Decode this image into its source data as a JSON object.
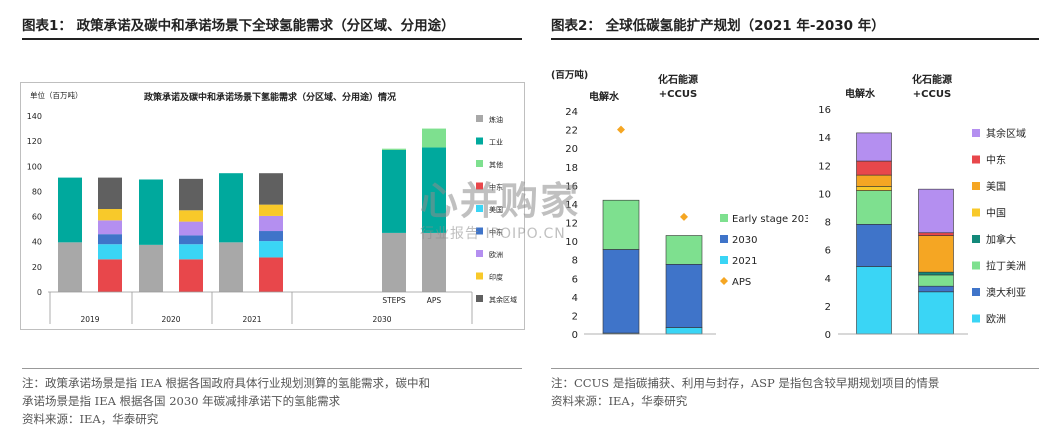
{
  "left_header": "图表1： 政策承诺及碳中和承诺场景下全球氢能需求（分区域、分用途）",
  "right_header": "图表2： 全球低碳氢能扩产规划（2021 年-2030 年）",
  "left_notes": [
    "注：政策承诺场景是指 IEA 根据各国政府具体行业规划测算的氢能需求，碳中和",
    "承诺场景是指 IEA 根据各国 2030 年碳减排承诺下的氢能需求",
    "资料来源：IEA，华泰研究"
  ],
  "right_notes": [
    "注：CCUS 是指碳捕获、利用与封存，ASP 是指包含较早期规划项目的情景",
    "资料来源：IEA，华泰研究"
  ],
  "watermark": {
    "main": "心并购家",
    "sub": "行业报告 IPOIPO.CN"
  },
  "colors": {
    "gray": "#a8a8a8",
    "teal": "#00a99d",
    "lightgreen": "#7ee08f",
    "red": "#e8474b",
    "blue": "#3f74c9",
    "lightblue": "#3ad5f5",
    "purple": "#b48ff0",
    "yellow": "#f8c92a",
    "darkgray": "#606060",
    "orange": "#f5a623",
    "darkteal": "#13897a"
  },
  "chart_data": [
    {
      "type": "bar",
      "title": "政策承诺及碳中和承诺场景下氢能需求（分区域、分用途）情况",
      "ylabel": "单位（百万吨）",
      "ylim": [
        0,
        140
      ],
      "yticks": [
        0,
        20,
        40,
        60,
        80,
        100,
        120,
        140
      ],
      "categories": [
        "2019 by-use",
        "2019 by-region",
        "2020 by-use",
        "2020 by-region",
        "2021 by-use",
        "2021 by-region",
        "STEPS",
        "APS"
      ],
      "group_labels": [
        "2019",
        "2020",
        "2021",
        "2030"
      ],
      "sub_labels": [
        "STEPS",
        "APS"
      ],
      "legend": [
        {
          "name": "炼油",
          "color": "gray"
        },
        {
          "name": "工业",
          "color": "teal"
        },
        {
          "name": "其他",
          "color": "lightgreen"
        },
        {
          "name": "中东",
          "color": "red"
        },
        {
          "name": "美国",
          "color": "lightblue"
        },
        {
          "name": "中东",
          "color": "blue"
        },
        {
          "name": "欧洲",
          "color": "purple"
        },
        {
          "name": "印度",
          "color": "yellow"
        },
        {
          "name": "其余区域",
          "color": "darkgray"
        }
      ],
      "stacks": [
        [
          {
            "v": 39.5,
            "c": "gray"
          },
          {
            "v": 51.5,
            "c": "teal"
          }
        ],
        [
          {
            "v": 26,
            "c": "red"
          },
          {
            "v": 12,
            "c": "lightblue"
          },
          {
            "v": 8,
            "c": "blue"
          },
          {
            "v": 11,
            "c": "purple"
          },
          {
            "v": 9,
            "c": "yellow"
          },
          {
            "v": 25,
            "c": "darkgray"
          }
        ],
        [
          {
            "v": 37.5,
            "c": "gray"
          },
          {
            "v": 52,
            "c": "teal"
          }
        ],
        [
          {
            "v": 26,
            "c": "red"
          },
          {
            "v": 12,
            "c": "lightblue"
          },
          {
            "v": 7,
            "c": "blue"
          },
          {
            "v": 11,
            "c": "purple"
          },
          {
            "v": 9,
            "c": "yellow"
          },
          {
            "v": 25,
            "c": "darkgray"
          }
        ],
        [
          {
            "v": 39.5,
            "c": "gray"
          },
          {
            "v": 55,
            "c": "teal"
          }
        ],
        [
          {
            "v": 27.5,
            "c": "red"
          },
          {
            "v": 13,
            "c": "lightblue"
          },
          {
            "v": 8,
            "c": "blue"
          },
          {
            "v": 12,
            "c": "purple"
          },
          {
            "v": 9,
            "c": "yellow"
          },
          {
            "v": 25,
            "c": "darkgray"
          }
        ],
        [
          {
            "v": 47,
            "c": "gray"
          },
          {
            "v": 66,
            "c": "teal"
          },
          {
            "v": 1,
            "c": "lightgreen"
          }
        ],
        [
          {
            "v": 47,
            "c": "gray"
          },
          {
            "v": 68,
            "c": "teal"
          },
          {
            "v": 15,
            "c": "lightgreen"
          }
        ]
      ]
    },
    {
      "type": "bar",
      "ylabel": "(百万吨)",
      "ylim": [
        0,
        24
      ],
      "yticks": [
        0,
        2,
        4,
        6,
        8,
        10,
        12,
        14,
        16,
        18,
        20,
        22,
        24
      ],
      "categories": [
        "电解水",
        "化石能源+CCUS"
      ],
      "legend": [
        {
          "name": "Early stage 2030",
          "color": "lightgreen"
        },
        {
          "name": "2030",
          "color": "blue"
        },
        {
          "name": "2021",
          "color": "lightblue"
        },
        {
          "name": "APS",
          "color": "orange"
        }
      ],
      "stacks": [
        [
          {
            "v": 0.1,
            "c": "lightblue"
          },
          {
            "v": 9.0,
            "c": "blue"
          },
          {
            "v": 5.3,
            "c": "lightgreen"
          }
        ],
        [
          {
            "v": 0.7,
            "c": "lightblue"
          },
          {
            "v": 6.8,
            "c": "blue"
          },
          {
            "v": 3.1,
            "c": "lightgreen"
          }
        ]
      ],
      "aps": [
        22,
        12.6
      ]
    },
    {
      "type": "bar",
      "ylim": [
        0,
        16
      ],
      "yticks": [
        0,
        2,
        4,
        6,
        8,
        10,
        12,
        14,
        16
      ],
      "categories": [
        "电解水",
        "化石能源+CCUS"
      ],
      "legend": [
        {
          "name": "其余区域",
          "color": "purple"
        },
        {
          "name": "中东",
          "color": "red"
        },
        {
          "name": "美国",
          "color": "orange"
        },
        {
          "name": "中国",
          "color": "yellow"
        },
        {
          "name": "加拿大",
          "color": "darkteal"
        },
        {
          "name": "拉丁美洲",
          "color": "lightgreen"
        },
        {
          "name": "澳大利亚",
          "color": "blue"
        },
        {
          "name": "欧洲",
          "color": "lightblue"
        }
      ],
      "stacks": [
        [
          {
            "v": 4.8,
            "c": "lightblue"
          },
          {
            "v": 3.0,
            "c": "blue"
          },
          {
            "v": 2.4,
            "c": "lightgreen"
          },
          {
            "v": 0.3,
            "c": "yellow"
          },
          {
            "v": 0.8,
            "c": "orange"
          },
          {
            "v": 1.0,
            "c": "red"
          },
          {
            "v": 2.0,
            "c": "purple"
          }
        ],
        [
          {
            "v": 3.0,
            "c": "lightblue"
          },
          {
            "v": 0.4,
            "c": "blue"
          },
          {
            "v": 0.8,
            "c": "lightgreen"
          },
          {
            "v": 0.2,
            "c": "darkteal"
          },
          {
            "v": 2.6,
            "c": "orange"
          },
          {
            "v": 0.2,
            "c": "red"
          },
          {
            "v": 3.1,
            "c": "purple"
          }
        ]
      ]
    }
  ]
}
